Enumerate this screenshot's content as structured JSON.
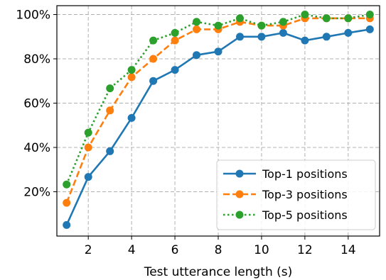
{
  "chart_data": {
    "type": "line",
    "title": "",
    "xlabel": "Test utterance length (s)",
    "ylabel": "",
    "x": [
      1,
      2,
      3,
      4,
      5,
      6,
      7,
      8,
      9,
      10,
      11,
      12,
      13,
      14,
      15
    ],
    "xlim": [
      0.55,
      15.45
    ],
    "ylim": [
      0,
      104
    ],
    "xticks": [
      2,
      4,
      6,
      8,
      10,
      12,
      14
    ],
    "xtick_labels": [
      "2",
      "4",
      "6",
      "8",
      "10",
      "12",
      "14"
    ],
    "yticks": [
      20,
      40,
      60,
      80,
      100
    ],
    "ytick_labels": [
      "20%",
      "40%",
      "60%",
      "80%",
      "100%"
    ],
    "grid": true,
    "legend_position": "bottom-right",
    "series": [
      {
        "name": "Top-1 positions",
        "color": "#1f77b4",
        "line_style": "solid",
        "values": [
          5,
          26.7,
          38.3,
          53.3,
          70,
          75,
          81.7,
          83.3,
          90,
          90,
          91.7,
          88.3,
          90,
          91.7,
          93.3
        ]
      },
      {
        "name": "Top-3 positions",
        "color": "#ff7f0e",
        "line_style": "dashed",
        "values": [
          15,
          40,
          56.7,
          71.7,
          80,
          88.3,
          93.3,
          93.3,
          96.7,
          95,
          95,
          98.3,
          98.3,
          98.3,
          98.3
        ]
      },
      {
        "name": "Top-5 positions",
        "color": "#2ca02c",
        "line_style": "dotted",
        "values": [
          23.3,
          46.7,
          66.7,
          75,
          88.3,
          91.7,
          96.7,
          95,
          98.3,
          95,
          96.7,
          100,
          98.3,
          98.3,
          100
        ]
      }
    ]
  }
}
